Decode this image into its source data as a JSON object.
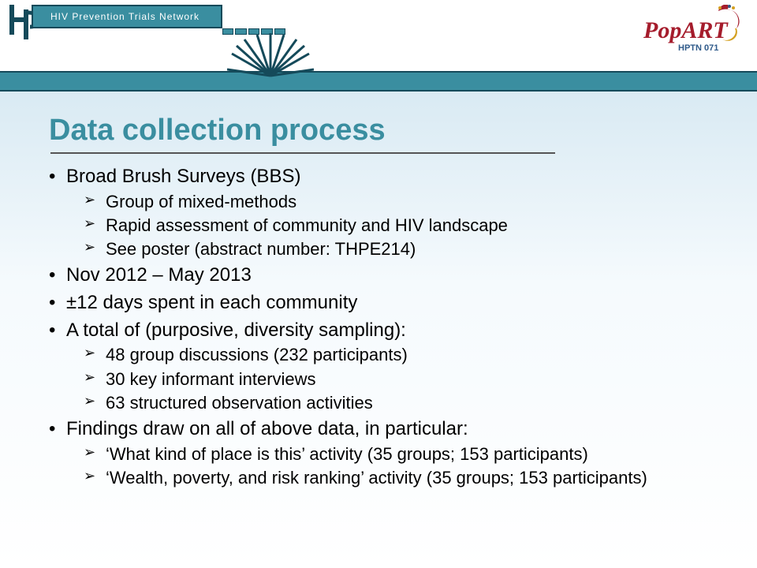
{
  "header": {
    "hptn_label": "HIV Prevention Trials Network",
    "popart_main": "PopART",
    "popart_sub": "HPTN 071"
  },
  "title": "Data collection process",
  "bullets": [
    {
      "text": "Broad Brush Surveys (BBS)",
      "children": [
        "Group of mixed-methods",
        "Rapid assessment of community and HIV landscape",
        "See poster (abstract number: THPE214)"
      ]
    },
    {
      "text": "Nov 2012 – May 2013",
      "children": []
    },
    {
      "text": "±12 days spent in each community",
      "children": []
    },
    {
      "text": "A total of (purposive, diversity sampling):",
      "children": [
        "48 group discussions (232 participants)",
        "30 key informant interviews",
        "63 structured observation activities"
      ]
    },
    {
      "text": "Findings draw on all of above data, in particular:",
      "children": [
        "‘What kind of place is this’ activity (35 groups; 153 participants)",
        "‘Wealth, poverty, and risk ranking’ activity (35 groups; 153 participants)"
      ]
    }
  ],
  "colors": {
    "accent": "#3a8ea0",
    "accent_dark": "#154a5a",
    "bg_top": "#d9eaf3",
    "popart_red": "#a51c2c",
    "popart_gold": "#d4a021",
    "popart_blue": "#2f5a8a"
  }
}
